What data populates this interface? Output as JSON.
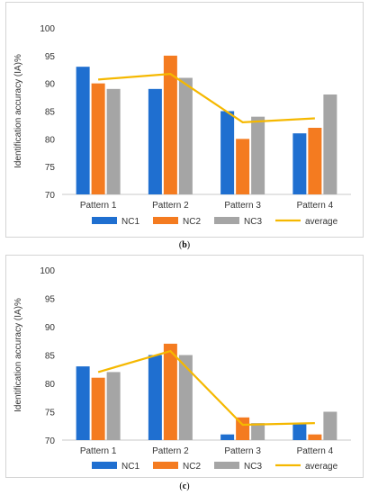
{
  "charts": [
    {
      "caption_open": "(",
      "caption_letter": "b",
      "caption_close": ")"
    },
    {
      "caption_open": "(",
      "caption_letter": "c",
      "caption_close": ")"
    }
  ],
  "chart_data": [
    {
      "type": "bar",
      "ylabel": "Identification accuracy (IA)%",
      "ylim": [
        70,
        100
      ],
      "yticks": [
        70,
        75,
        80,
        85,
        90,
        95,
        100
      ],
      "grid": false,
      "legend_position": "bottom",
      "categories": [
        "Pattern 1",
        "Pattern 2",
        "Pattern 3",
        "Pattern 4"
      ],
      "series": [
        {
          "name": "NC1",
          "values": [
            93,
            89,
            85,
            81
          ],
          "color": "#1f6fd0"
        },
        {
          "name": "NC2",
          "values": [
            90,
            95,
            80,
            82
          ],
          "color": "#f47b20"
        },
        {
          "name": "NC3",
          "values": [
            89,
            91,
            84,
            88
          ],
          "color": "#a5a5a5"
        }
      ],
      "line": {
        "name": "average",
        "values": [
          90.7,
          91.7,
          83.0,
          83.7
        ],
        "color": "#f5b800"
      }
    },
    {
      "type": "bar",
      "ylabel": "Identification accuracy (IA)%",
      "ylim": [
        70,
        100
      ],
      "yticks": [
        70,
        75,
        80,
        85,
        90,
        95,
        100
      ],
      "grid": false,
      "legend_position": "bottom",
      "categories": [
        "Pattern 1",
        "Pattern 2",
        "Pattern 3",
        "Pattern 4"
      ],
      "series": [
        {
          "name": "NC1",
          "values": [
            83,
            85,
            71,
            73
          ],
          "color": "#1f6fd0"
        },
        {
          "name": "NC2",
          "values": [
            81,
            87,
            74,
            71
          ],
          "color": "#f47b20"
        },
        {
          "name": "NC3",
          "values": [
            82,
            85,
            73,
            75
          ],
          "color": "#a5a5a5"
        }
      ],
      "line": {
        "name": "average",
        "values": [
          82.0,
          85.7,
          72.7,
          73.0
        ],
        "color": "#f5b800"
      }
    }
  ]
}
